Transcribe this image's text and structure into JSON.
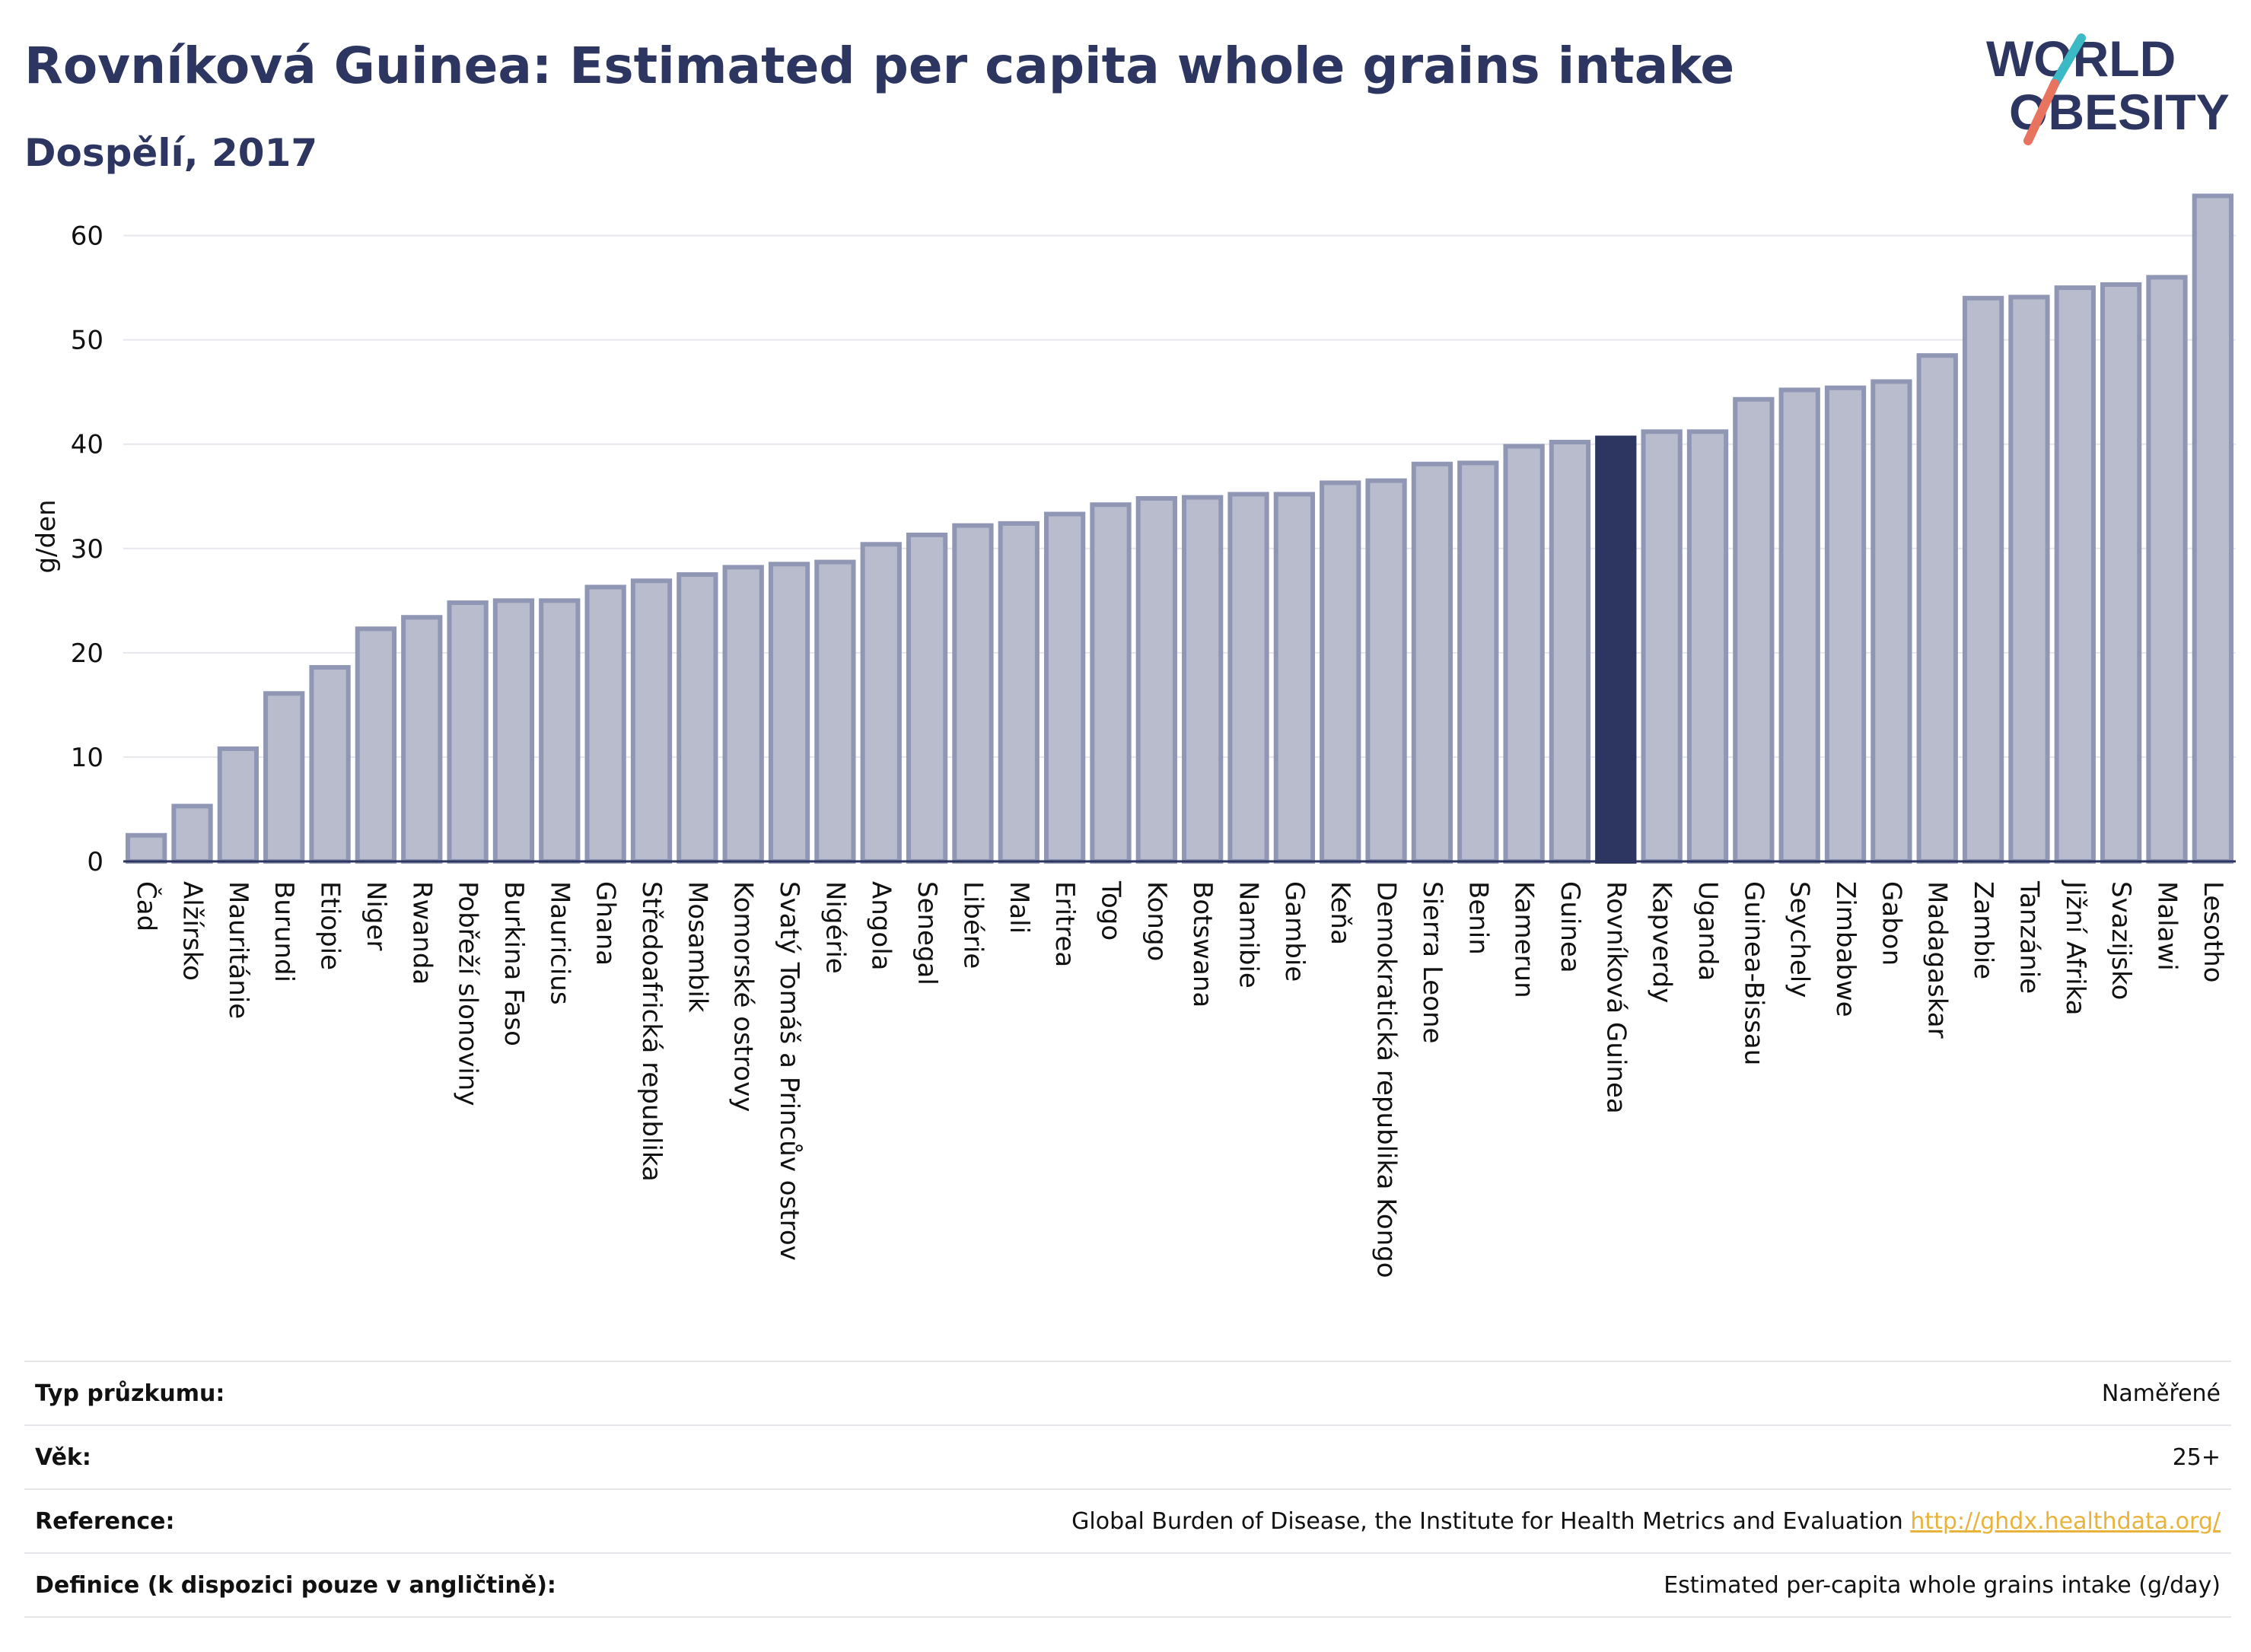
{
  "header": {
    "title": "Rovníková Guinea: Estimated per capita whole grains intake",
    "subtitle": "Dospělí, 2017"
  },
  "logo": {
    "line1": "WORLD",
    "line2": "OBESITY"
  },
  "colors": {
    "bar": "#b8bccd",
    "bar_border": "#9097b4",
    "highlight": "#2d3561",
    "grid": "#e6e7ec",
    "axis": "#2d3561"
  },
  "chart_data": {
    "type": "bar",
    "ylabel": "g/den",
    "ylim": [
      0,
      65
    ],
    "yticks": [
      0,
      10,
      20,
      30,
      40,
      50,
      60
    ],
    "grid": true,
    "highlight": "Rovníková Guinea",
    "categories": [
      "Čad",
      "Alžírsko",
      "Mauritánie",
      "Burundi",
      "Etiopie",
      "Niger",
      "Rwanda",
      "Pobřeží slonoviny",
      "Burkina Faso",
      "Mauricius",
      "Ghana",
      "Středoafrická republika",
      "Mosambik",
      "Komorské ostrovy",
      "Svatý Tomáš a Princův ostrov",
      "Nigérie",
      "Angola",
      "Senegal",
      "Libérie",
      "Mali",
      "Eritrea",
      "Togo",
      "Kongo",
      "Botswana",
      "Namibie",
      "Gambie",
      "Keňa",
      "Demokratická republika Kongo",
      "Sierra Leone",
      "Benin",
      "Kamerun",
      "Guinea",
      "Rovníková Guinea",
      "Kapverdy",
      "Uganda",
      "Guinea-Bissau",
      "Seychely",
      "Zimbabwe",
      "Gabon",
      "Madagaskar",
      "Zambie",
      "Tanzánie",
      "Jižní Afrika",
      "Svazijsko",
      "Malawi",
      "Lesotho"
    ],
    "values": [
      2.5,
      5.3,
      10.8,
      16.1,
      18.6,
      22.3,
      23.4,
      24.8,
      25.0,
      25.0,
      26.3,
      26.9,
      27.5,
      28.2,
      28.5,
      28.7,
      30.4,
      31.3,
      32.2,
      32.4,
      33.3,
      34.2,
      34.8,
      34.9,
      35.2,
      35.2,
      36.3,
      36.5,
      38.1,
      38.2,
      39.8,
      40.2,
      40.6,
      41.2,
      41.2,
      44.3,
      45.2,
      45.4,
      46.0,
      48.5,
      54.0,
      54.1,
      55.0,
      55.3,
      56.0,
      63.8
    ]
  },
  "meta": {
    "survey_label": "Typ průzkumu:",
    "survey_value": "Naměřené",
    "age_label": "Věk:",
    "age_value": "25+",
    "ref_label": "Reference:",
    "ref_text": "Global Burden of Disease, the Institute for Health Metrics and Evaluation ",
    "ref_link": "http://ghdx.healthdata.org/",
    "def_label": "Definice (k dispozici pouze v angličtině):",
    "def_value": "Estimated per-capita whole grains intake (g/day)"
  }
}
